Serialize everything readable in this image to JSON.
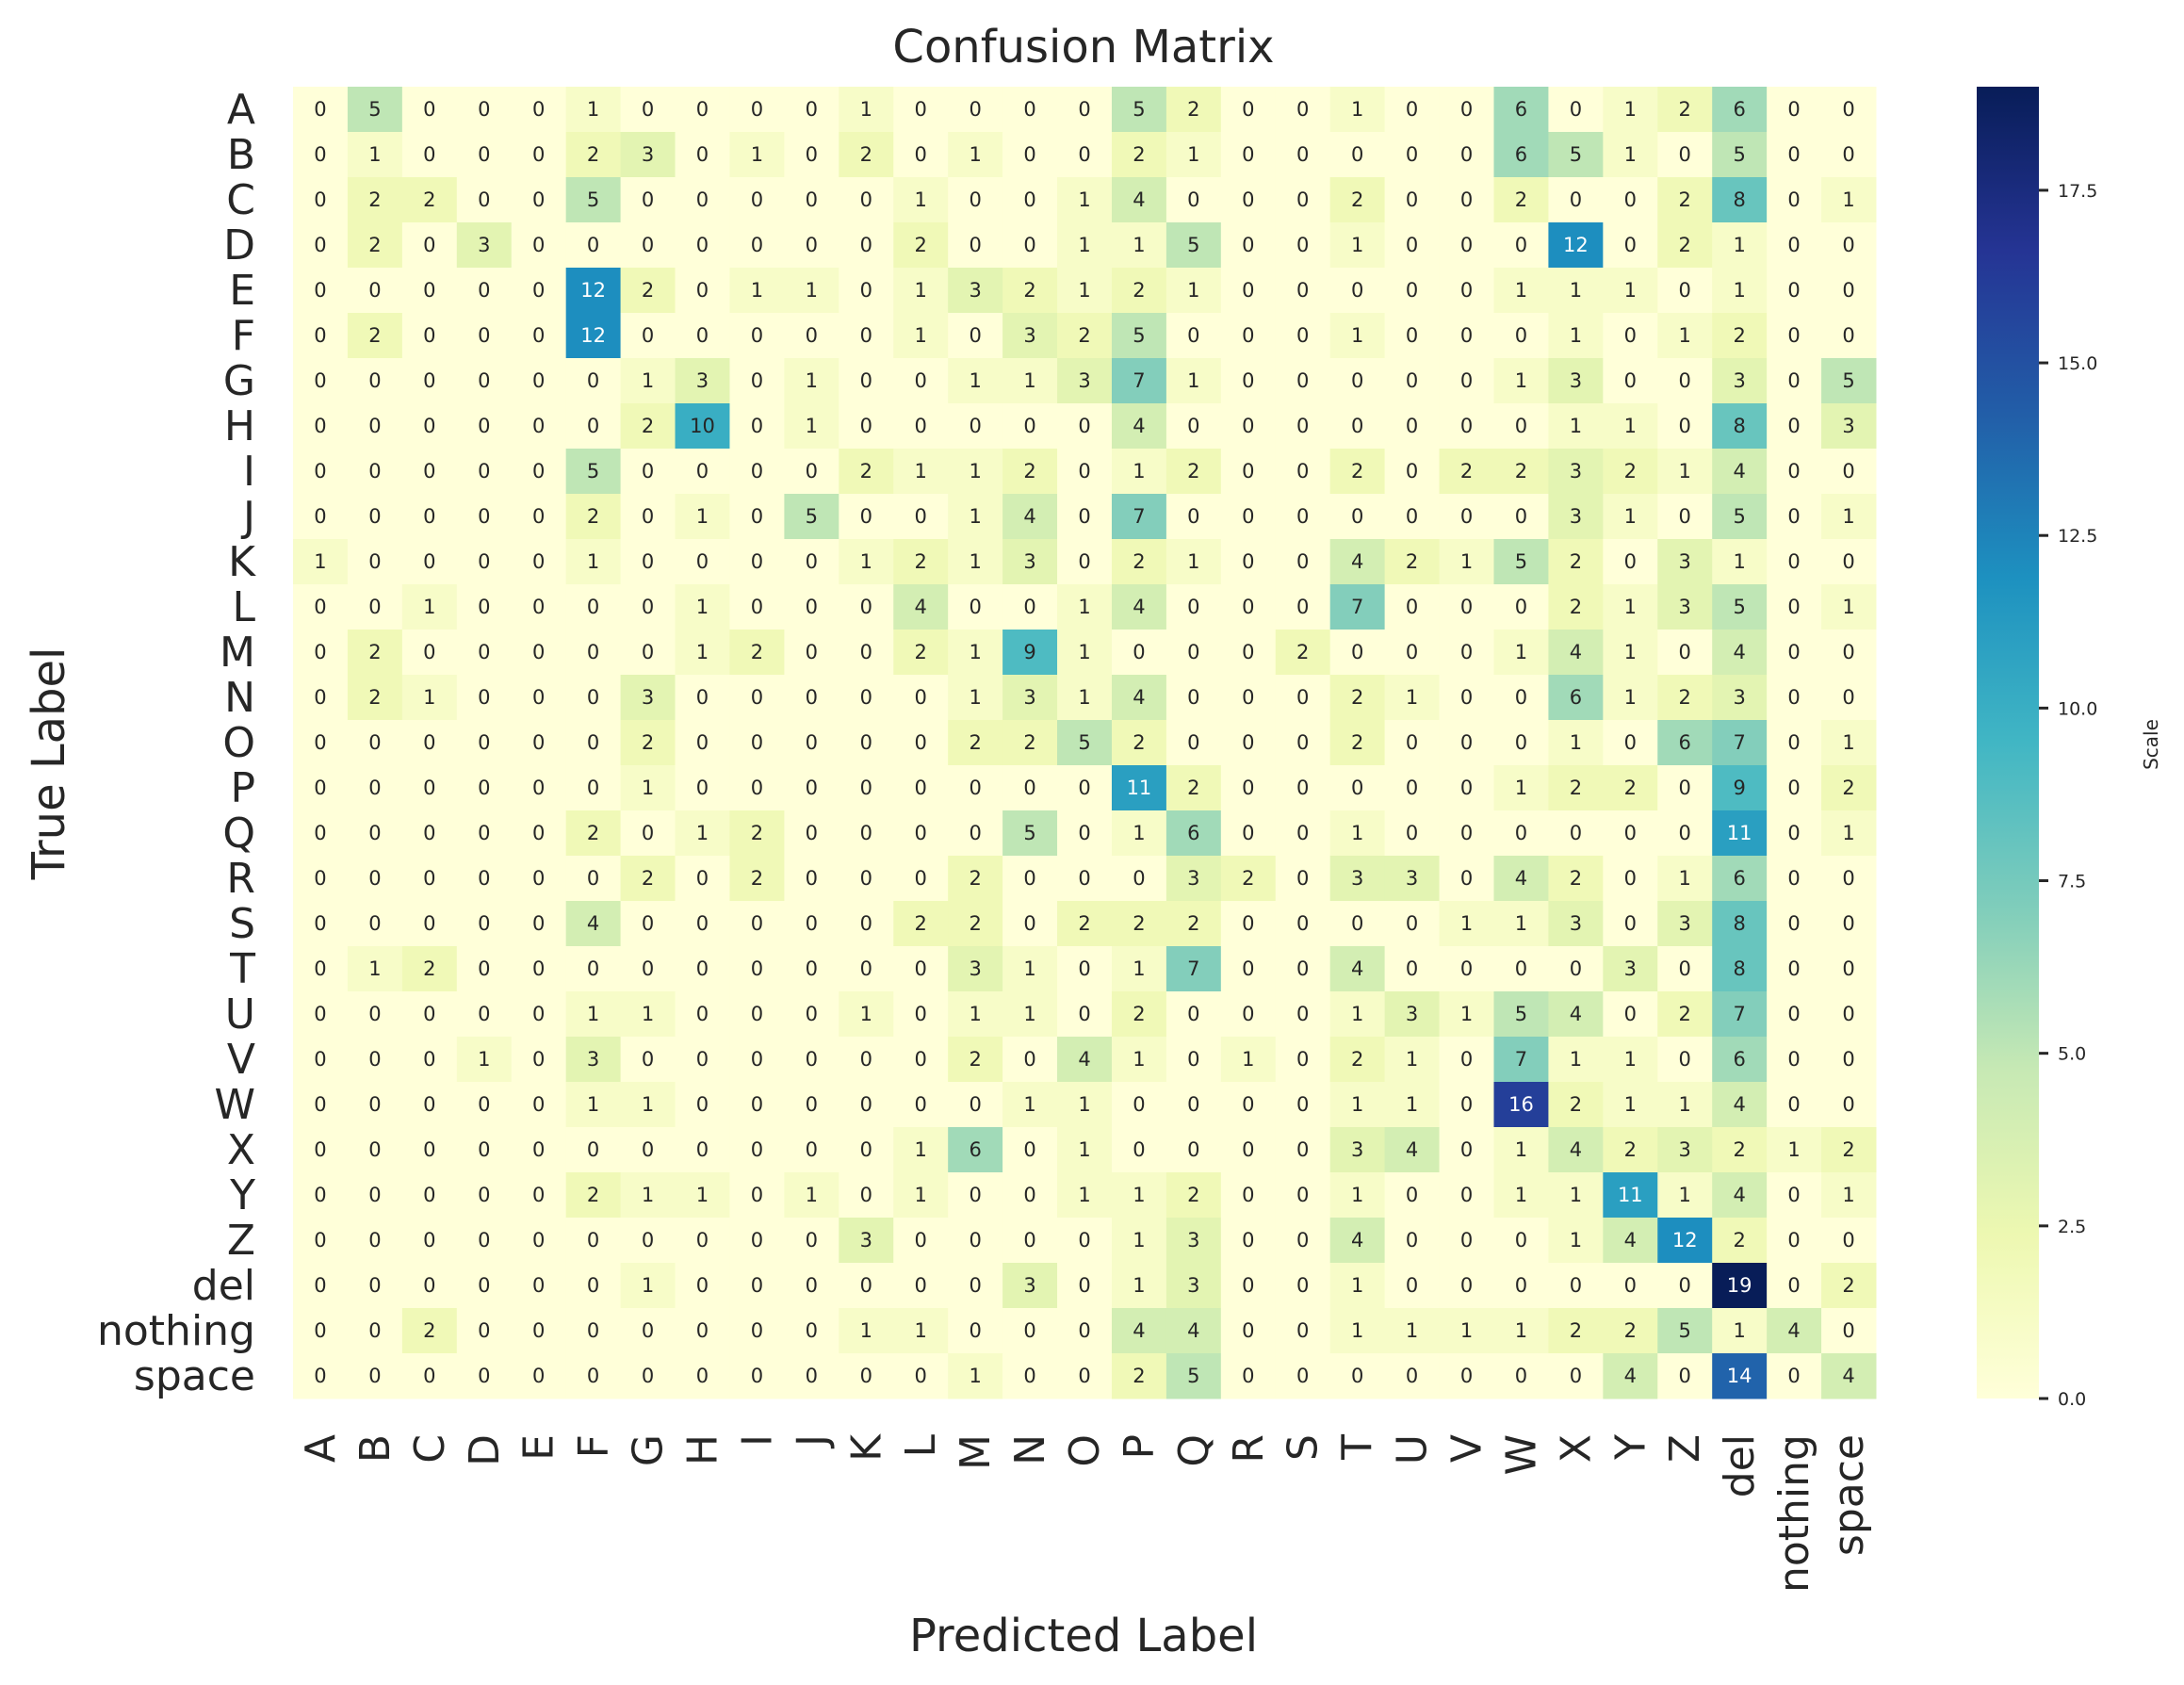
{
  "chart_data": {
    "type": "heatmap",
    "title": "Confusion Matrix",
    "xlabel": "Predicted Label",
    "ylabel": "True Label",
    "colorbar_label": "Scale",
    "colormap": "YlGnBu",
    "vmin": 0,
    "vmax": 19,
    "colorbar_ticks": [
      "0.0",
      "2.5",
      "5.0",
      "7.5",
      "10.0",
      "12.5",
      "15.0",
      "17.5"
    ],
    "categories": [
      "A",
      "B",
      "C",
      "D",
      "E",
      "F",
      "G",
      "H",
      "I",
      "J",
      "K",
      "L",
      "M",
      "N",
      "O",
      "P",
      "Q",
      "R",
      "S",
      "T",
      "U",
      "V",
      "W",
      "X",
      "Y",
      "Z",
      "del",
      "nothing",
      "space"
    ],
    "matrix": [
      [
        0,
        5,
        0,
        0,
        0,
        1,
        0,
        0,
        0,
        0,
        1,
        0,
        0,
        0,
        0,
        5,
        2,
        0,
        0,
        1,
        0,
        0,
        6,
        0,
        1,
        2,
        6,
        0,
        0
      ],
      [
        0,
        1,
        0,
        0,
        0,
        2,
        3,
        0,
        1,
        0,
        2,
        0,
        1,
        0,
        0,
        2,
        1,
        0,
        0,
        0,
        0,
        0,
        6,
        5,
        1,
        0,
        5,
        0,
        0
      ],
      [
        0,
        2,
        2,
        0,
        0,
        5,
        0,
        0,
        0,
        0,
        0,
        1,
        0,
        0,
        1,
        4,
        0,
        0,
        0,
        2,
        0,
        0,
        2,
        0,
        0,
        2,
        8,
        0,
        1
      ],
      [
        0,
        2,
        0,
        3,
        0,
        0,
        0,
        0,
        0,
        0,
        0,
        2,
        0,
        0,
        1,
        1,
        5,
        0,
        0,
        1,
        0,
        0,
        0,
        12,
        0,
        2,
        1,
        0,
        0
      ],
      [
        0,
        0,
        0,
        0,
        0,
        12,
        2,
        0,
        1,
        1,
        0,
        1,
        3,
        2,
        1,
        2,
        1,
        0,
        0,
        0,
        0,
        0,
        1,
        1,
        1,
        0,
        1,
        0,
        0
      ],
      [
        0,
        2,
        0,
        0,
        0,
        12,
        0,
        0,
        0,
        0,
        0,
        1,
        0,
        3,
        2,
        5,
        0,
        0,
        0,
        1,
        0,
        0,
        0,
        1,
        0,
        1,
        2,
        0,
        0
      ],
      [
        0,
        0,
        0,
        0,
        0,
        0,
        1,
        3,
        0,
        1,
        0,
        0,
        1,
        1,
        3,
        7,
        1,
        0,
        0,
        0,
        0,
        0,
        1,
        3,
        0,
        0,
        3,
        0,
        5
      ],
      [
        0,
        0,
        0,
        0,
        0,
        0,
        2,
        10,
        0,
        1,
        0,
        0,
        0,
        0,
        0,
        4,
        0,
        0,
        0,
        0,
        0,
        0,
        0,
        1,
        1,
        0,
        8,
        0,
        3
      ],
      [
        0,
        0,
        0,
        0,
        0,
        5,
        0,
        0,
        0,
        0,
        2,
        1,
        1,
        2,
        0,
        1,
        2,
        0,
        0,
        2,
        0,
        2,
        2,
        3,
        2,
        1,
        4,
        0,
        0
      ],
      [
        0,
        0,
        0,
        0,
        0,
        2,
        0,
        1,
        0,
        5,
        0,
        0,
        1,
        4,
        0,
        7,
        0,
        0,
        0,
        0,
        0,
        0,
        0,
        3,
        1,
        0,
        5,
        0,
        1
      ],
      [
        1,
        0,
        0,
        0,
        0,
        1,
        0,
        0,
        0,
        0,
        1,
        2,
        1,
        3,
        0,
        2,
        1,
        0,
        0,
        4,
        2,
        1,
        5,
        2,
        0,
        3,
        1,
        0,
        0
      ],
      [
        0,
        0,
        1,
        0,
        0,
        0,
        0,
        1,
        0,
        0,
        0,
        4,
        0,
        0,
        1,
        4,
        0,
        0,
        0,
        7,
        0,
        0,
        0,
        2,
        1,
        3,
        5,
        0,
        1
      ],
      [
        0,
        2,
        0,
        0,
        0,
        0,
        0,
        1,
        2,
        0,
        0,
        2,
        1,
        9,
        1,
        0,
        0,
        0,
        2,
        0,
        0,
        0,
        1,
        4,
        1,
        0,
        4,
        0,
        0
      ],
      [
        0,
        2,
        1,
        0,
        0,
        0,
        3,
        0,
        0,
        0,
        0,
        0,
        1,
        3,
        1,
        4,
        0,
        0,
        0,
        2,
        1,
        0,
        0,
        6,
        1,
        2,
        3,
        0,
        0
      ],
      [
        0,
        0,
        0,
        0,
        0,
        0,
        2,
        0,
        0,
        0,
        0,
        0,
        2,
        2,
        5,
        2,
        0,
        0,
        0,
        2,
        0,
        0,
        0,
        1,
        0,
        6,
        7,
        0,
        1
      ],
      [
        0,
        0,
        0,
        0,
        0,
        0,
        1,
        0,
        0,
        0,
        0,
        0,
        0,
        0,
        0,
        11,
        2,
        0,
        0,
        0,
        0,
        0,
        1,
        2,
        2,
        0,
        9,
        0,
        2
      ],
      [
        0,
        0,
        0,
        0,
        0,
        2,
        0,
        1,
        2,
        0,
        0,
        0,
        0,
        5,
        0,
        1,
        6,
        0,
        0,
        1,
        0,
        0,
        0,
        0,
        0,
        0,
        11,
        0,
        1
      ],
      [
        0,
        0,
        0,
        0,
        0,
        0,
        2,
        0,
        2,
        0,
        0,
        0,
        2,
        0,
        0,
        0,
        3,
        2,
        0,
        3,
        3,
        0,
        4,
        2,
        0,
        1,
        6,
        0,
        0
      ],
      [
        0,
        0,
        0,
        0,
        0,
        4,
        0,
        0,
        0,
        0,
        0,
        2,
        2,
        0,
        2,
        2,
        2,
        0,
        0,
        0,
        0,
        1,
        1,
        3,
        0,
        3,
        8,
        0,
        0
      ],
      [
        0,
        1,
        2,
        0,
        0,
        0,
        0,
        0,
        0,
        0,
        0,
        0,
        3,
        1,
        0,
        1,
        7,
        0,
        0,
        4,
        0,
        0,
        0,
        0,
        3,
        0,
        8,
        0,
        0
      ],
      [
        0,
        0,
        0,
        0,
        0,
        1,
        1,
        0,
        0,
        0,
        1,
        0,
        1,
        1,
        0,
        2,
        0,
        0,
        0,
        1,
        3,
        1,
        5,
        4,
        0,
        2,
        7,
        0,
        0
      ],
      [
        0,
        0,
        0,
        1,
        0,
        3,
        0,
        0,
        0,
        0,
        0,
        0,
        2,
        0,
        4,
        1,
        0,
        1,
        0,
        2,
        1,
        0,
        7,
        1,
        1,
        0,
        6,
        0,
        0
      ],
      [
        0,
        0,
        0,
        0,
        0,
        1,
        1,
        0,
        0,
        0,
        0,
        0,
        0,
        1,
        1,
        0,
        0,
        0,
        0,
        1,
        1,
        0,
        16,
        2,
        1,
        1,
        4,
        0,
        0
      ],
      [
        0,
        0,
        0,
        0,
        0,
        0,
        0,
        0,
        0,
        0,
        0,
        1,
        6,
        0,
        1,
        0,
        0,
        0,
        0,
        3,
        4,
        0,
        1,
        4,
        2,
        3,
        2,
        1,
        2
      ],
      [
        0,
        0,
        0,
        0,
        0,
        2,
        1,
        1,
        0,
        1,
        0,
        1,
        0,
        0,
        1,
        1,
        2,
        0,
        0,
        1,
        0,
        0,
        1,
        1,
        11,
        1,
        4,
        0,
        1
      ],
      [
        0,
        0,
        0,
        0,
        0,
        0,
        0,
        0,
        0,
        0,
        3,
        0,
        0,
        0,
        0,
        1,
        3,
        0,
        0,
        4,
        0,
        0,
        0,
        1,
        4,
        12,
        2,
        0,
        0
      ],
      [
        0,
        0,
        0,
        0,
        0,
        0,
        1,
        0,
        0,
        0,
        0,
        0,
        0,
        3,
        0,
        1,
        3,
        0,
        0,
        1,
        0,
        0,
        0,
        0,
        0,
        0,
        19,
        0,
        2
      ],
      [
        0,
        0,
        2,
        0,
        0,
        0,
        0,
        0,
        0,
        0,
        1,
        1,
        0,
        0,
        0,
        4,
        4,
        0,
        0,
        1,
        1,
        1,
        1,
        2,
        2,
        5,
        1,
        4,
        0
      ],
      [
        0,
        0,
        0,
        0,
        0,
        0,
        0,
        0,
        0,
        0,
        0,
        0,
        1,
        0,
        0,
        2,
        5,
        0,
        0,
        0,
        0,
        0,
        0,
        0,
        4,
        0,
        14,
        0,
        4
      ]
    ]
  }
}
